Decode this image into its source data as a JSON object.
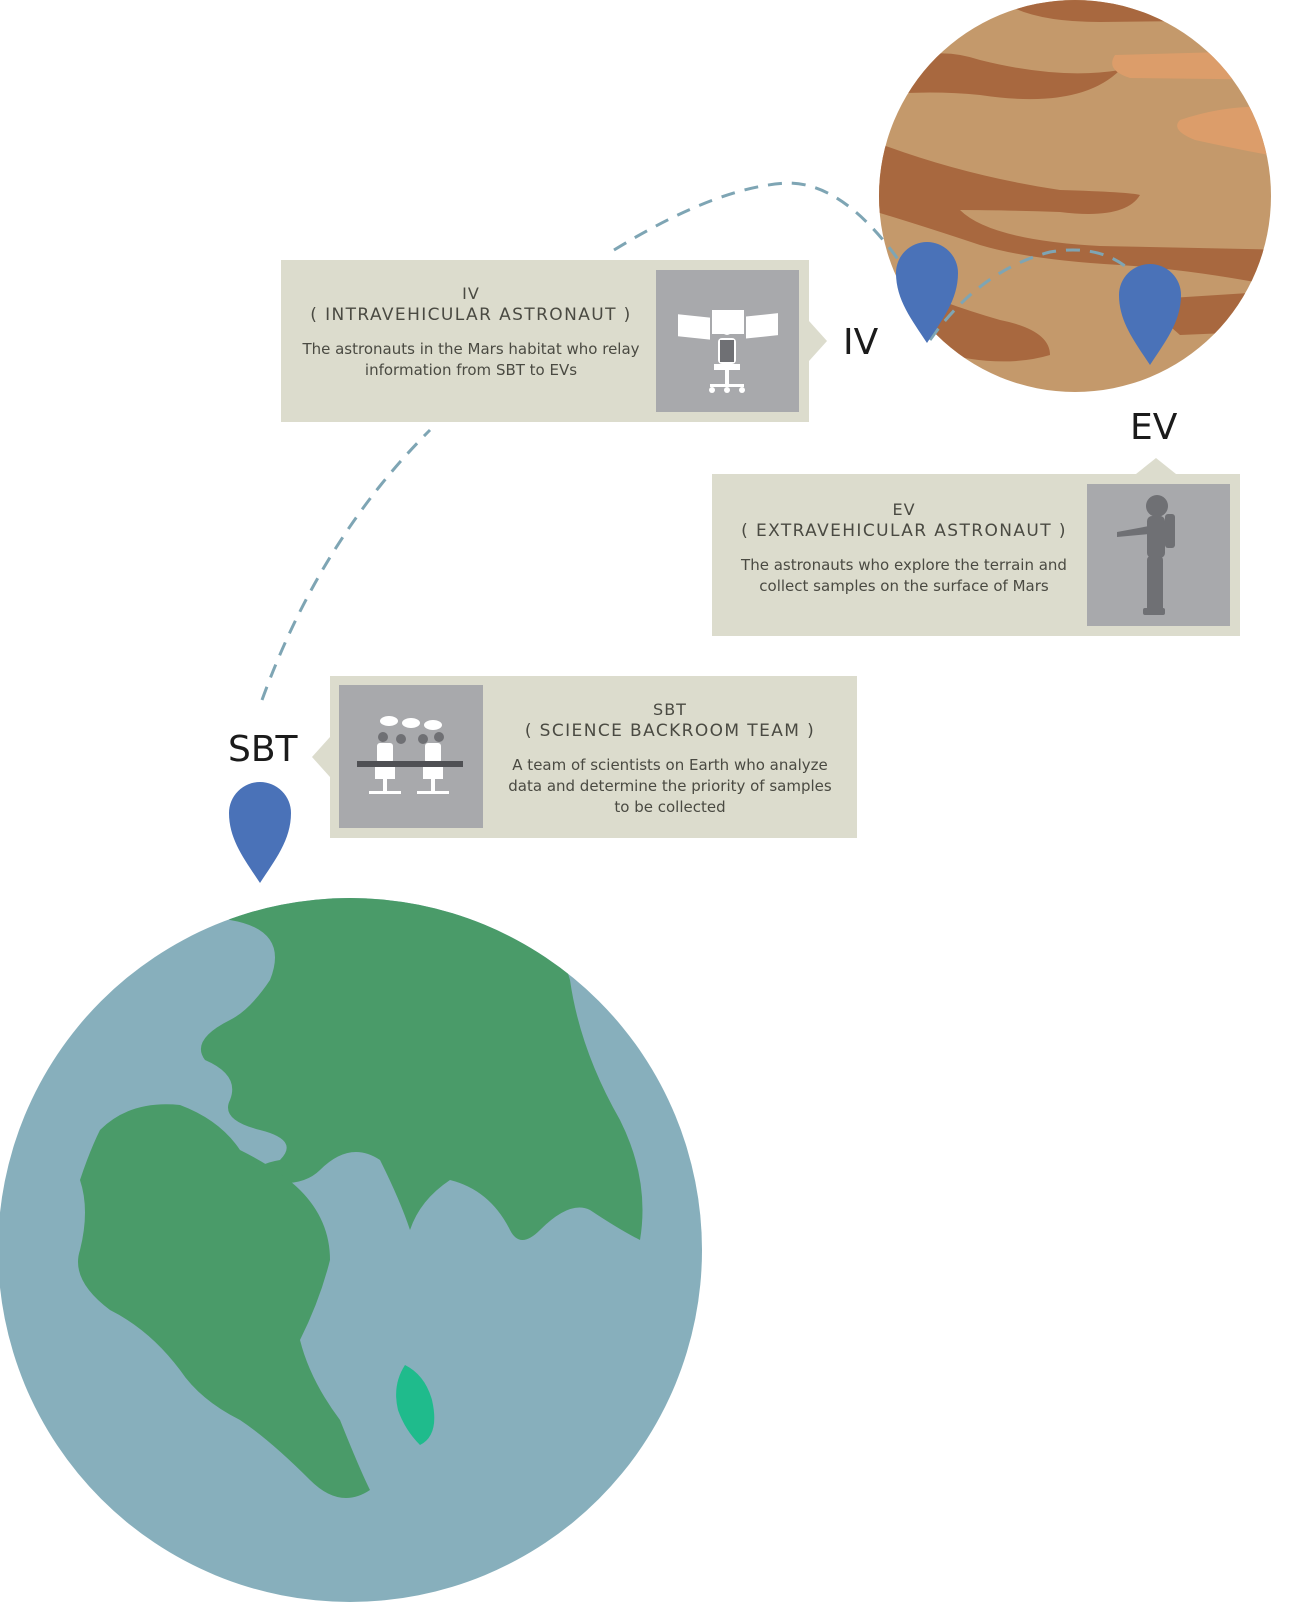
{
  "labels": {
    "iv": "IV",
    "ev": "EV",
    "sbt": "SBT"
  },
  "cards": {
    "iv": {
      "code": "IV",
      "full": "( INTRAVEHICULAR ASTRONAUT )",
      "desc_line1": "The astronauts in the Mars habitat who relay",
      "desc_line2": "information from SBT to EVs",
      "icon": "control-desk-icon"
    },
    "ev": {
      "code": "EV",
      "full": "( EXTRAVEHICULAR ASTRONAUT )",
      "desc_line1": "The astronauts who explore the terrain and",
      "desc_line2": "collect samples on the surface of Mars",
      "icon": "astronaut-icon"
    },
    "sbt": {
      "code": "SBT",
      "full": "( SCIENCE BACKROOM TEAM )",
      "desc_line1": "A team of scientists on Earth who analyze",
      "desc_line2": "data and determine the priority of samples",
      "desc_line3": "to be collected",
      "icon": "science-team-icon"
    }
  },
  "colors": {
    "card_bg": "#dcdccd",
    "thumb_bg": "#a8a9ac",
    "pin": "#4a72b8",
    "dash": "#7ea5b4",
    "mars_base": "#c4996b",
    "mars_dark": "#a8683f",
    "mars_light": "#dc9d6a",
    "earth_ocean": "#87afbc",
    "earth_land": "#4a9b69",
    "earth_island": "#1fbb8c"
  }
}
